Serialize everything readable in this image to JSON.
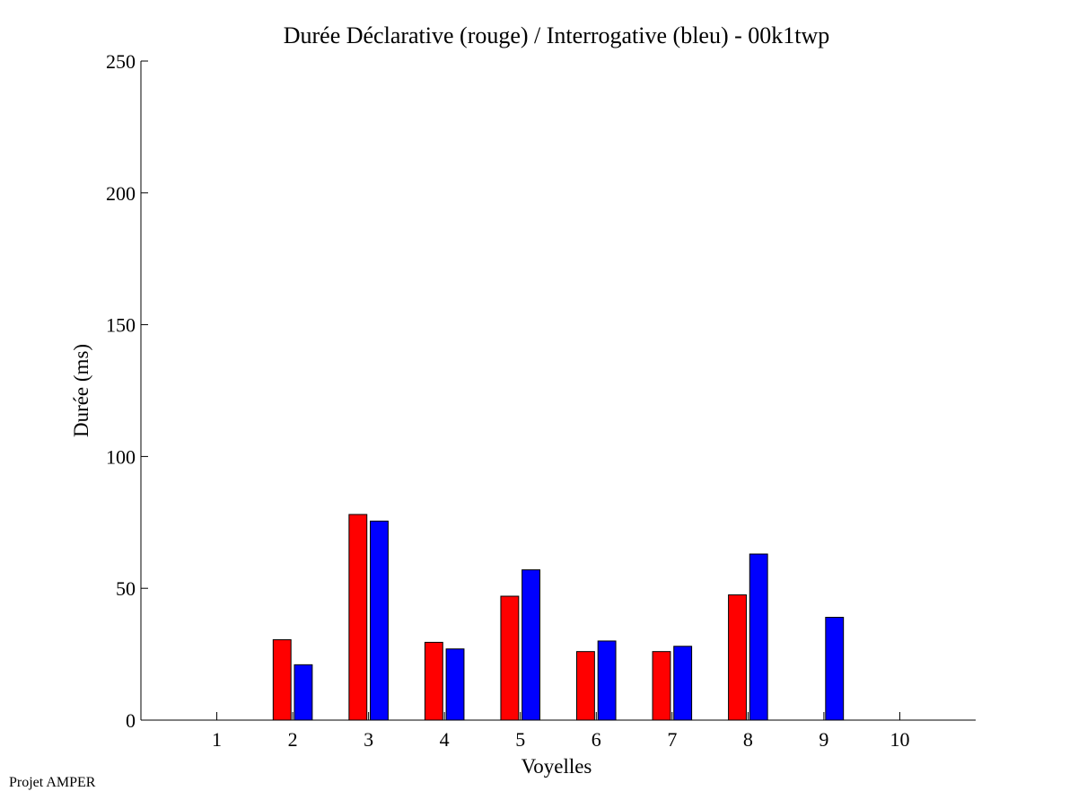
{
  "chart_data": {
    "type": "bar",
    "title": "Durée Déclarative (rouge) / Interrogative (bleu) - 00k1twp",
    "xlabel": "Voyelles",
    "ylabel": "Durée (ms)",
    "categories": [
      1,
      2,
      3,
      4,
      5,
      6,
      7,
      8,
      9,
      10
    ],
    "xlim": [
      0,
      11
    ],
    "ylim": [
      0,
      250
    ],
    "yticks": [
      0,
      50,
      100,
      150,
      200,
      250
    ],
    "grid": false,
    "series": [
      {
        "color": "#ff0000",
        "values": [
          0,
          30.5,
          78,
          29.5,
          47,
          26,
          26,
          47.5,
          0,
          0
        ]
      },
      {
        "color": "#0000ff",
        "values": [
          0,
          21,
          75.5,
          27,
          57,
          30,
          28,
          63,
          39,
          0
        ]
      }
    ]
  },
  "footer": {
    "text": "Projet AMPER"
  }
}
